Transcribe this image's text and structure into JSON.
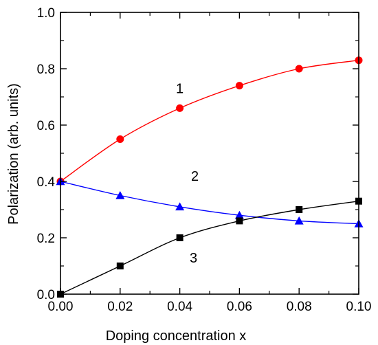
{
  "chart_data": {
    "type": "line",
    "title": "",
    "xlabel": "Doping concentration x",
    "ylabel": "Polarization (arb. units)",
    "xlim": [
      0,
      0.1
    ],
    "ylim": [
      0,
      1.0
    ],
    "x_ticks": [
      "0.00",
      "0.02",
      "0.04",
      "0.06",
      "0.08",
      "0.10"
    ],
    "y_ticks": [
      "0.0",
      "0.2",
      "0.4",
      "0.6",
      "0.8",
      "1.0"
    ],
    "grid": false,
    "legend": "none",
    "x": [
      0.0,
      0.02,
      0.04,
      0.06,
      0.08,
      0.1
    ],
    "series": [
      {
        "label": "1",
        "color": "#ff0000",
        "marker": "circle",
        "values": [
          0.4,
          0.55,
          0.66,
          0.74,
          0.8,
          0.83
        ]
      },
      {
        "label": "2",
        "color": "#0000ff",
        "marker": "triangle",
        "values": [
          0.4,
          0.35,
          0.31,
          0.28,
          0.26,
          0.25
        ]
      },
      {
        "label": "3",
        "color": "#000000",
        "marker": "square",
        "values": [
          0.0,
          0.1,
          0.2,
          0.26,
          0.3,
          0.33
        ]
      }
    ]
  }
}
